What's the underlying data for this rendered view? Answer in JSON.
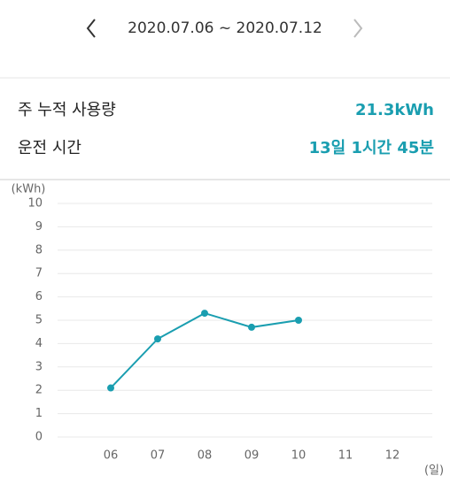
{
  "header": {
    "date_range": "2020.07.06 ~ 2020.07.12"
  },
  "summary": {
    "rows": [
      [
        "주 누적 사용량",
        "21.3kWh"
      ],
      [
        "운전 시간",
        "13일 1시간 45분"
      ]
    ]
  },
  "chart_data": {
    "type": "line",
    "y_label": "(kWh)",
    "x_label": "(일)",
    "categories": [
      "06",
      "07",
      "08",
      "09",
      "10",
      "11",
      "12"
    ],
    "values": [
      2.1,
      4.2,
      5.3,
      4.7,
      5.0,
      null,
      null
    ],
    "color": "#1a9eb0",
    "ylim": [
      0,
      10
    ],
    "yticks": [
      0,
      1,
      2,
      3,
      4,
      5,
      6,
      7,
      8,
      9,
      10
    ],
    "grid": true
  }
}
